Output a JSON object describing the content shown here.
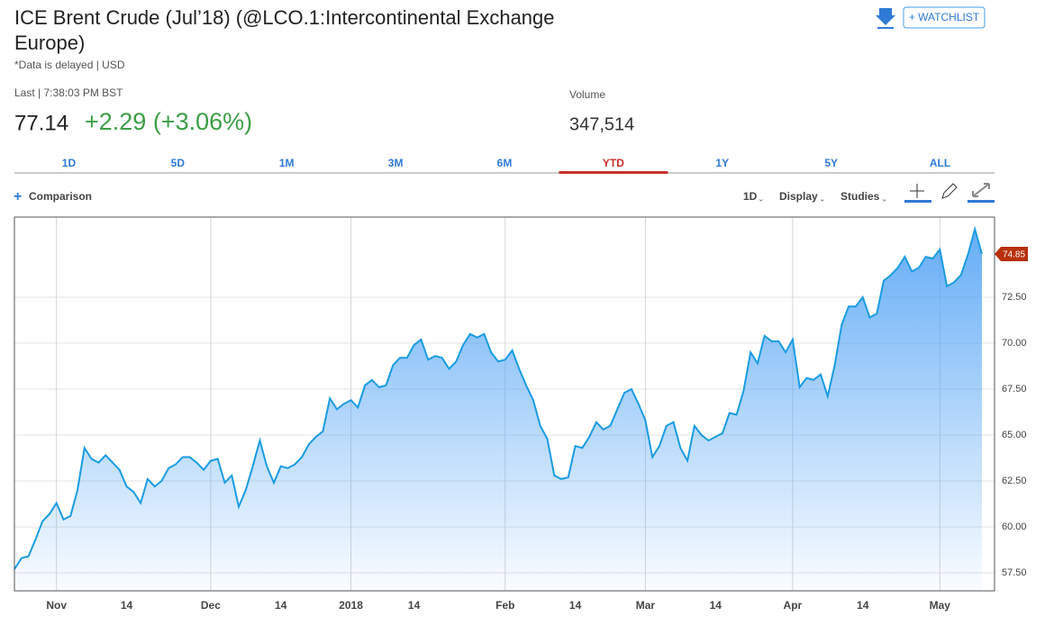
{
  "header": {
    "title": "ICE Brent Crude (Jul’18) (@LCO.1:Intercontinental Exchange Europe)",
    "note": "*Data is delayed | USD",
    "watchlist": "+ WATCHLIST"
  },
  "quote": {
    "last_label": "Last | 7:38:03 PM BST",
    "last": 77.14,
    "change": "+2.29 (+3.06%)",
    "volume_label": "Volume",
    "volume": "347,514"
  },
  "tabs": {
    "items": [
      "1D",
      "5D",
      "1M",
      "3M",
      "6M",
      "YTD",
      "1Y",
      "5Y",
      "ALL"
    ],
    "active": "YTD"
  },
  "toolbar": {
    "comparison": "Comparison",
    "interval": "1D",
    "display": "Display",
    "studies": "Studies"
  },
  "chart_data": {
    "type": "line",
    "color": "#1a9ce2",
    "marker_color": "#b8300c",
    "grid": true,
    "categories": [
      null,
      null,
      null,
      null,
      null,
      null,
      "Nov",
      null,
      null,
      null,
      null,
      null,
      null,
      null,
      null,
      null,
      "14",
      null,
      null,
      null,
      null,
      null,
      null,
      null,
      null,
      null,
      null,
      null,
      "Dec",
      null,
      null,
      null,
      null,
      null,
      null,
      null,
      null,
      null,
      "14",
      null,
      null,
      null,
      null,
      null,
      null,
      null,
      null,
      null,
      "2018",
      null,
      null,
      null,
      null,
      null,
      null,
      null,
      null,
      "14",
      null,
      null,
      null,
      null,
      null,
      null,
      null,
      null,
      null,
      null,
      null,
      null,
      "Feb",
      null,
      null,
      null,
      null,
      null,
      null,
      null,
      null,
      null,
      "14",
      null,
      null,
      null,
      null,
      null,
      null,
      null,
      null,
      null,
      "Mar",
      null,
      null,
      null,
      null,
      null,
      null,
      null,
      null,
      null,
      "14",
      null,
      null,
      null,
      null,
      null,
      null,
      null,
      null,
      null,
      null,
      "Apr",
      null,
      null,
      null,
      null,
      null,
      null,
      null,
      null,
      null,
      "14",
      null,
      null,
      null,
      null,
      null,
      null,
      null,
      null,
      null,
      null,
      "May",
      null,
      null,
      null,
      null,
      null,
      null
    ],
    "values": [
      57.7,
      58.3,
      58.4,
      59.3,
      60.3,
      60.7,
      61.3,
      60.4,
      60.6,
      62.0,
      64.3,
      63.7,
      63.5,
      63.9,
      63.5,
      63.1,
      62.2,
      61.9,
      61.3,
      62.6,
      62.2,
      62.5,
      63.2,
      63.4,
      63.8,
      63.8,
      63.5,
      63.1,
      63.6,
      63.7,
      62.4,
      62.8,
      61.1,
      62.0,
      63.3,
      64.7,
      63.3,
      62.4,
      63.3,
      63.2,
      63.4,
      63.8,
      64.5,
      64.9,
      65.2,
      67.0,
      66.4,
      66.7,
      66.9,
      66.5,
      67.7,
      68.0,
      67.6,
      67.7,
      68.8,
      69.2,
      69.2,
      69.9,
      70.2,
      69.1,
      69.3,
      69.2,
      68.6,
      69.0,
      69.9,
      70.5,
      70.3,
      70.5,
      69.5,
      69.0,
      69.1,
      69.6,
      68.6,
      67.7,
      66.9,
      65.5,
      64.8,
      62.8,
      62.6,
      62.7,
      64.4,
      64.3,
      64.9,
      65.7,
      65.3,
      65.5,
      66.4,
      67.3,
      67.5,
      66.7,
      65.8,
      63.8,
      64.4,
      65.5,
      65.7,
      64.3,
      63.6,
      65.5,
      65.0,
      64.7,
      64.9,
      65.1,
      66.2,
      66.1,
      67.4,
      69.5,
      68.9,
      70.4,
      70.1,
      70.1,
      69.5,
      70.2,
      67.6,
      68.1,
      68.0,
      68.3,
      67.1,
      68.8,
      71.0,
      72.0,
      72.0,
      72.5,
      71.4,
      71.6,
      73.4,
      73.7,
      74.1,
      74.7,
      73.9,
      74.1,
      74.7,
      74.6,
      75.1,
      73.1,
      73.3,
      73.7,
      74.8,
      76.2,
      74.85
    ],
    "ylim": [
      56.52,
      76.86
    ],
    "yticks": [
      {
        "value": 57.5,
        "label": "57.50"
      },
      {
        "value": 60,
        "label": "60.00"
      },
      {
        "value": 62.5,
        "label": "62.50"
      },
      {
        "value": 65,
        "label": "65.00"
      },
      {
        "value": 67.5,
        "label": "67.50"
      },
      {
        "value": 70,
        "label": "70.00"
      },
      {
        "value": 72.5,
        "label": "72.50"
      }
    ]
  }
}
